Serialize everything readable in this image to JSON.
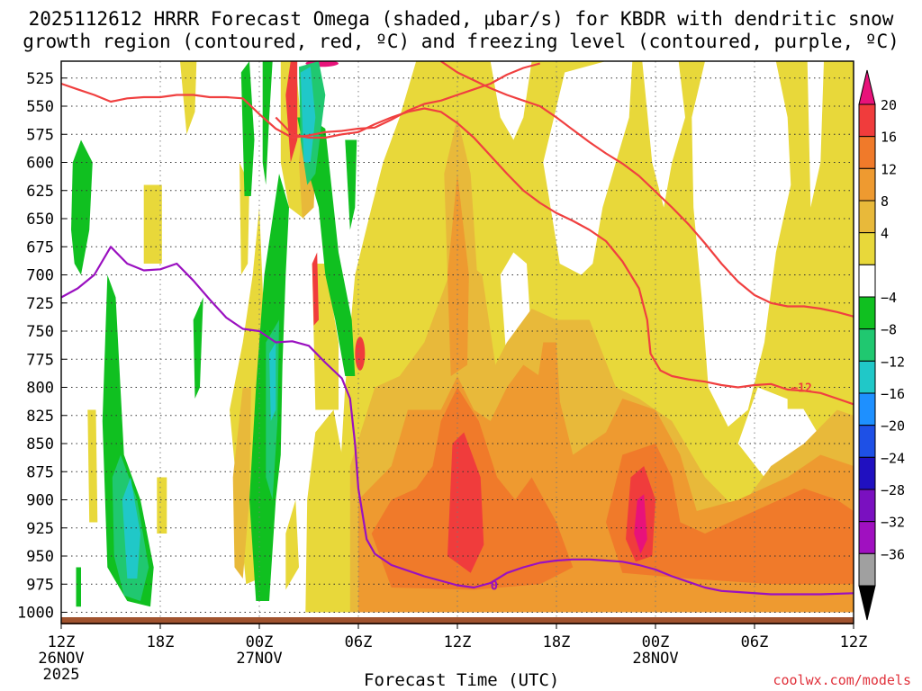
{
  "title_line1": "2025112612 HRRR Forecast Omega (shaded, μbar/s) for KBDR with dendritic snow",
  "title_line2": "growth region (contoured, red, ºC) and freezing level (contoured, purple, ºC)",
  "credit": "coolwx.com/models",
  "chart_data": {
    "type": "heatmap",
    "title": "2025112612 HRRR Forecast Omega (shaded, μbar/s) for KBDR with dendritic snow growth region (contoured, red, ºC) and freezing level (contoured, purple, ºC)",
    "xlabel": "Forecast Time (UTC)",
    "ylabel": "",
    "y_axis": {
      "ticks": [
        525,
        550,
        575,
        600,
        625,
        650,
        675,
        700,
        725,
        750,
        775,
        800,
        825,
        850,
        875,
        900,
        925,
        950,
        975,
        1000
      ],
      "inverted": true,
      "range_hpa": [
        510,
        1010
      ]
    },
    "x_axis": {
      "range_hours": [
        0,
        48
      ],
      "ticks": [
        {
          "hour": 0,
          "label": "12Z",
          "date": "26NOV",
          "year": "2025"
        },
        {
          "hour": 6,
          "label": "18Z",
          "date": "",
          "year": ""
        },
        {
          "hour": 12,
          "label": "00Z",
          "date": "27NOV",
          "year": ""
        },
        {
          "hour": 18,
          "label": "06Z",
          "date": "",
          "year": ""
        },
        {
          "hour": 24,
          "label": "12Z",
          "date": "",
          "year": ""
        },
        {
          "hour": 30,
          "label": "18Z",
          "date": "",
          "year": ""
        },
        {
          "hour": 36,
          "label": "00Z",
          "date": "28NOV",
          "year": ""
        },
        {
          "hour": 42,
          "label": "06Z",
          "date": "",
          "year": ""
        },
        {
          "hour": 48,
          "label": "12Z",
          "date": "",
          "year": ""
        }
      ]
    },
    "grid": true,
    "colorbar": {
      "unit": "μbar/s",
      "labels": [
        "20",
        "16",
        "12",
        "8",
        "4",
        "−4",
        "−8",
        "−12",
        "−16",
        "−20",
        "−24",
        "−28",
        "−32",
        "−36"
      ],
      "colors": [
        "#e8127a",
        "#f03c3c",
        "#f07a2a",
        "#ee9a30",
        "#e8b93a",
        "#e8d83a",
        "#ffffff",
        "#10c020",
        "#20c870",
        "#20c8c8",
        "#1e90ff",
        "#1e50e6",
        "#2010c0",
        "#7a10c0",
        "#a010c0",
        "#a0a0a0",
        "#000000"
      ]
    },
    "shaded_regions": [
      {
        "name": "ascent_core_12z27",
        "omega_range": [
          12,
          20
        ],
        "x_hours": [
          23.5,
          25.5
        ],
        "y_hpa": [
          850,
          960
        ]
      },
      {
        "name": "ascent_core_22z27",
        "omega_range": [
          16,
          20
        ],
        "x_hours": [
          34.8,
          35.6
        ],
        "y_hpa": [
          895,
          945
        ]
      },
      {
        "name": "descent_core_02z27",
        "omega_range": [
          -16,
          -12
        ],
        "x_hours": [
          14.3,
          15.2
        ],
        "y_hpa": [
          515,
          600
        ]
      },
      {
        "name": "descent_core_15z26",
        "omega_range": [
          -16,
          -12
        ],
        "x_hours": [
          3.6,
          5.4
        ],
        "y_hpa": [
          870,
          975
        ]
      }
    ],
    "contours": [
      {
        "name": "freezing level",
        "label": "0",
        "color": "#9a10c0",
        "points_hours_hpa": [
          [
            0,
            720
          ],
          [
            1,
            712
          ],
          [
            2,
            700
          ],
          [
            3,
            675
          ],
          [
            4,
            690
          ],
          [
            5,
            696
          ],
          [
            6,
            695
          ],
          [
            7,
            690
          ],
          [
            8,
            705
          ],
          [
            9,
            722
          ],
          [
            10,
            738
          ],
          [
            11,
            748
          ],
          [
            12,
            750
          ],
          [
            13,
            760
          ],
          [
            14,
            759
          ],
          [
            15,
            763
          ],
          [
            16,
            778
          ],
          [
            17,
            792
          ],
          [
            17.5,
            810
          ],
          [
            17.8,
            850
          ],
          [
            18,
            890
          ],
          [
            18.5,
            935
          ],
          [
            19,
            948
          ],
          [
            20,
            958
          ],
          [
            22,
            968
          ],
          [
            23,
            972
          ],
          [
            24,
            976
          ],
          [
            25,
            978
          ],
          [
            26,
            974
          ],
          [
            27,
            965
          ],
          [
            28,
            960
          ],
          [
            29,
            956
          ],
          [
            30,
            954
          ],
          [
            31,
            953
          ],
          [
            32,
            953
          ],
          [
            33,
            954
          ],
          [
            34,
            955
          ],
          [
            35,
            958
          ],
          [
            36,
            962
          ],
          [
            37,
            968
          ],
          [
            38,
            973
          ],
          [
            39,
            978
          ],
          [
            40,
            981
          ],
          [
            41,
            982
          ],
          [
            43,
            984
          ],
          [
            46,
            984
          ],
          [
            48,
            983
          ]
        ]
      },
      {
        "name": "-12C upper",
        "label": "",
        "color": "#f04040",
        "points_hours_hpa": [
          [
            0,
            530
          ],
          [
            1,
            535
          ],
          [
            2,
            540
          ],
          [
            3,
            546
          ],
          [
            4,
            543
          ],
          [
            5,
            542
          ],
          [
            6,
            542
          ],
          [
            7,
            540
          ],
          [
            8,
            540
          ],
          [
            9,
            542
          ],
          [
            10,
            542
          ],
          [
            11,
            543
          ],
          [
            12,
            557
          ],
          [
            13,
            570
          ],
          [
            14,
            578
          ],
          [
            15,
            576
          ],
          [
            16,
            573
          ],
          [
            17,
            572
          ],
          [
            18,
            570
          ],
          [
            19,
            569
          ],
          [
            20,
            562
          ],
          [
            21,
            554
          ],
          [
            22,
            548
          ],
          [
            23,
            545
          ],
          [
            24,
            540
          ],
          [
            25,
            535
          ],
          [
            26,
            530
          ],
          [
            27,
            522
          ],
          [
            28,
            516
          ],
          [
            29,
            512
          ]
        ]
      },
      {
        "name": "-12C middle",
        "label": "−12",
        "color": "#f04040",
        "points_hours_hpa": [
          [
            13,
            560
          ],
          [
            14,
            575
          ],
          [
            15,
            578
          ],
          [
            16,
            578
          ],
          [
            17,
            575
          ],
          [
            18,
            573
          ],
          [
            19,
            566
          ],
          [
            20,
            560
          ],
          [
            21,
            555
          ],
          [
            22,
            552
          ],
          [
            23,
            555
          ],
          [
            24,
            565
          ],
          [
            25,
            578
          ],
          [
            26,
            594
          ],
          [
            27,
            610
          ],
          [
            28,
            625
          ],
          [
            29,
            636
          ],
          [
            30,
            645
          ],
          [
            31,
            652
          ],
          [
            32,
            660
          ],
          [
            33,
            670
          ],
          [
            34,
            688
          ],
          [
            35,
            712
          ],
          [
            35.5,
            740
          ],
          [
            35.7,
            770
          ],
          [
            36.3,
            785
          ],
          [
            37,
            790
          ],
          [
            38,
            793
          ],
          [
            39,
            795
          ],
          [
            40,
            798
          ],
          [
            41,
            800
          ],
          [
            42,
            798
          ],
          [
            43,
            797
          ],
          [
            44,
            802
          ],
          [
            45,
            803
          ],
          [
            46,
            805
          ],
          [
            47,
            810
          ],
          [
            48,
            815
          ]
        ]
      },
      {
        "name": "-12C right",
        "label": "",
        "color": "#f04040",
        "points_hours_hpa": [
          [
            23,
            510
          ],
          [
            24,
            520
          ],
          [
            25,
            527
          ],
          [
            26,
            534
          ],
          [
            27,
            540
          ],
          [
            28,
            545
          ],
          [
            29,
            550
          ],
          [
            30,
            560
          ],
          [
            31,
            571
          ],
          [
            32,
            582
          ],
          [
            33,
            592
          ],
          [
            34,
            601
          ],
          [
            35,
            612
          ],
          [
            36,
            626
          ],
          [
            37,
            640
          ],
          [
            38,
            655
          ],
          [
            39,
            672
          ],
          [
            40,
            690
          ],
          [
            41,
            706
          ],
          [
            42,
            718
          ],
          [
            43,
            725
          ],
          [
            44,
            728
          ],
          [
            45,
            728
          ],
          [
            46,
            730
          ],
          [
            47,
            733
          ],
          [
            48,
            737
          ]
        ]
      }
    ],
    "ground": {
      "label": "terrain",
      "color": "#a0522d"
    }
  }
}
